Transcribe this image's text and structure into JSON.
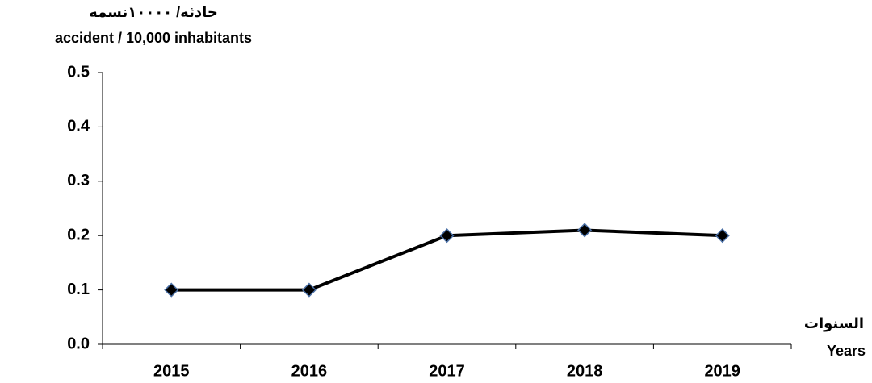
{
  "chart_data": {
    "type": "line",
    "y_label": [
      "حادثه/ ١٠٠٠٠نسمه",
      "accident / 10,000 inhabitants"
    ],
    "x_label": [
      "السنوات",
      "Years"
    ],
    "categories": [
      "2015",
      "2016",
      "2017",
      "2018",
      "2019"
    ],
    "values": [
      0.1,
      0.1,
      0.2,
      0.21,
      0.2
    ],
    "color": "#000000",
    "marker_edge_color": "#4a6fa5",
    "ylim": [
      0,
      0.5
    ],
    "yticks": [
      {
        "value": 0,
        "label": "0.0"
      },
      0.1,
      0.2,
      0.3,
      0.4,
      0.5
    ],
    "grid": false
  }
}
